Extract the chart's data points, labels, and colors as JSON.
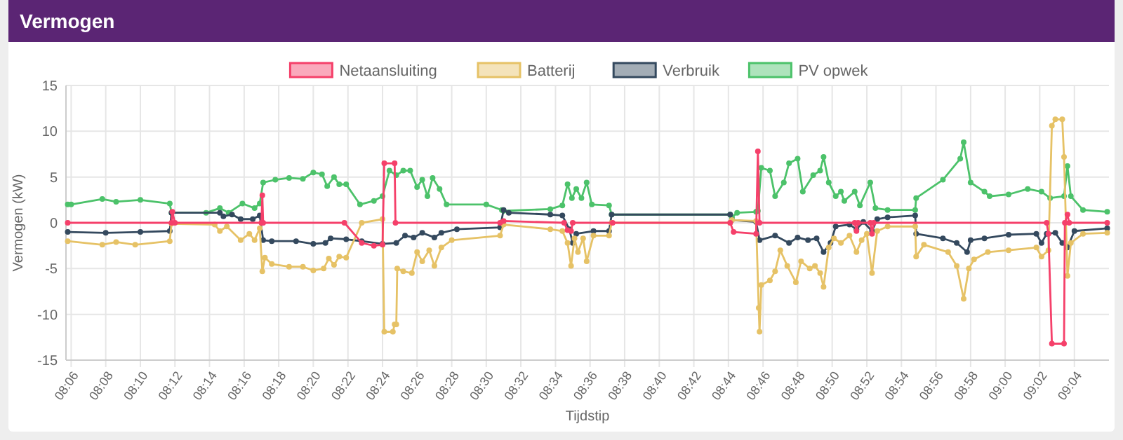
{
  "chart_data": {
    "type": "line",
    "title": "Vermogen",
    "xlabel": "Tijdstip",
    "ylabel": "Vermogen (kW)",
    "legend": "top",
    "grid": true,
    "marker": "circle",
    "line_style": "solid",
    "xlim": [
      8.095,
      9.1
    ],
    "ylim": [
      -15,
      15
    ],
    "yticks": [
      -15,
      -10,
      -5,
      0,
      5,
      10,
      15
    ],
    "xticks": [
      {
        "value": 8.1,
        "label": "08:06"
      },
      {
        "value": 8.1333,
        "label": "08:08"
      },
      {
        "value": 8.1667,
        "label": "08:10"
      },
      {
        "value": 8.2,
        "label": "08:12"
      },
      {
        "value": 8.2333,
        "label": "08:14"
      },
      {
        "value": 8.2667,
        "label": "08:16"
      },
      {
        "value": 8.3,
        "label": "08:18"
      },
      {
        "value": 8.3333,
        "label": "08:20"
      },
      {
        "value": 8.3667,
        "label": "08:22"
      },
      {
        "value": 8.4,
        "label": "08:24"
      },
      {
        "value": 8.4333,
        "label": "08:26"
      },
      {
        "value": 8.4667,
        "label": "08:28"
      },
      {
        "value": 8.5,
        "label": "08:30"
      },
      {
        "value": 8.5333,
        "label": "08:32"
      },
      {
        "value": 8.5667,
        "label": "08:34"
      },
      {
        "value": 8.6,
        "label": "08:36"
      },
      {
        "value": 8.6333,
        "label": "08:38"
      },
      {
        "value": 8.6667,
        "label": "08:40"
      },
      {
        "value": 8.7,
        "label": "08:42"
      },
      {
        "value": 8.7333,
        "label": "08:44"
      },
      {
        "value": 8.7667,
        "label": "08:46"
      },
      {
        "value": 8.8,
        "label": "08:48"
      },
      {
        "value": 8.8333,
        "label": "08:50"
      },
      {
        "value": 8.8667,
        "label": "08:52"
      },
      {
        "value": 8.9,
        "label": "08:54"
      },
      {
        "value": 8.9333,
        "label": "08:56"
      },
      {
        "value": 8.9667,
        "label": "08:58"
      },
      {
        "value": 9.0,
        "label": "09:00"
      },
      {
        "value": 9.0333,
        "label": "09:02"
      },
      {
        "value": 9.0667,
        "label": "09:04"
      }
    ],
    "series": [
      {
        "name": "Netaansluiting",
        "color": "#f5406a",
        "x": [
          8.0967,
          8.1967,
          8.1975,
          8.2,
          8.2833,
          8.2842,
          8.285,
          8.3633,
          8.38,
          8.3917,
          8.4,
          8.4017,
          8.4117,
          8.4125,
          8.5133,
          8.5167,
          8.575,
          8.5783,
          8.5817,
          8.5833,
          8.6217,
          8.735,
          8.7383,
          8.76,
          8.7617,
          8.7633,
          8.855,
          8.8567,
          8.8583,
          8.87,
          8.8717,
          8.8733,
          9.04,
          9.0417,
          9.045,
          9.0567,
          9.0575,
          9.06,
          9.0617,
          9.0983
        ],
        "values": [
          0,
          0,
          1.2,
          0,
          0,
          3.0,
          0,
          0,
          -2.2,
          -2.5,
          -2.4,
          6.5,
          6.5,
          0,
          0,
          0.2,
          0,
          -0.8,
          -0.9,
          0,
          0,
          0,
          -1.0,
          -1.2,
          7.8,
          0,
          0,
          -0.9,
          0,
          0,
          -1.2,
          0,
          0,
          -1.2,
          -13.2,
          -13.2,
          0,
          0.9,
          0,
          0
        ]
      },
      {
        "name": "Batterij",
        "color": "#e6c266",
        "x": [
          8.0967,
          8.13,
          8.1433,
          8.1617,
          8.195,
          8.1967,
          8.2383,
          8.2433,
          8.25,
          8.2633,
          8.2717,
          8.2767,
          8.2817,
          8.2842,
          8.2867,
          8.2933,
          8.31,
          8.3233,
          8.3333,
          8.3433,
          8.3483,
          8.3533,
          8.3583,
          8.365,
          8.38,
          8.4,
          8.4017,
          8.41,
          8.4117,
          8.4133,
          8.4142,
          8.42,
          8.4283,
          8.4333,
          8.4383,
          8.445,
          8.45,
          8.4567,
          8.4667,
          8.5133,
          8.5167,
          8.5617,
          8.5733,
          8.5783,
          8.5817,
          8.585,
          8.5883,
          8.5933,
          8.5967,
          8.6033,
          8.6183,
          8.6208,
          8.735,
          8.7367,
          8.76,
          8.7625,
          8.7633,
          8.765,
          8.7733,
          8.7783,
          8.7833,
          8.79,
          8.7983,
          8.8033,
          8.8117,
          8.8167,
          8.8217,
          8.825,
          8.83,
          8.835,
          8.8417,
          8.85,
          8.8567,
          8.8617,
          8.8667,
          8.8717,
          8.8767,
          8.8867,
          8.9133,
          8.9142,
          8.9217,
          8.945,
          8.9533,
          8.96,
          8.965,
          8.97,
          8.9833,
          9.0033,
          9.03,
          9.035,
          9.0417,
          9.045,
          9.0483,
          9.055,
          9.0567,
          9.06,
          9.0633,
          9.075,
          9.0983
        ],
        "values": [
          -2.0,
          -2.4,
          -2.1,
          -2.4,
          -2.0,
          -0.1,
          -0.2,
          -0.9,
          -0.4,
          -1.9,
          -1.2,
          -1.9,
          -0.6,
          -5.3,
          -3.8,
          -4.5,
          -4.8,
          -4.8,
          -5.2,
          -5.0,
          -3.9,
          -4.6,
          -3.7,
          -3.8,
          0,
          0.4,
          -11.9,
          -11.9,
          -11.1,
          -11.1,
          -5.0,
          -5.3,
          -5.5,
          -3.2,
          -4.2,
          -3.0,
          -4.7,
          -2.7,
          -1.9,
          -1.4,
          -0.2,
          -0.7,
          -0.9,
          -2.2,
          -4.7,
          -1.7,
          -3.2,
          -1.7,
          -4.2,
          -1.4,
          -1.4,
          0,
          0,
          0.3,
          0.2,
          -9.3,
          -11.9,
          -6.8,
          -6.3,
          -5.3,
          -3.0,
          -4.7,
          -6.5,
          -4.2,
          -5.0,
          -4.7,
          -5.5,
          -7.0,
          -2.7,
          -1.7,
          -2.2,
          -1.4,
          -3.2,
          -1.9,
          -1.2,
          -5.5,
          -0.9,
          -0.4,
          -0.4,
          -3.7,
          -2.4,
          -3.2,
          -4.7,
          -8.3,
          -5.0,
          -4.0,
          -3.2,
          -3.0,
          -2.7,
          -3.7,
          -3.0,
          10.6,
          11.3,
          11.3,
          7.2,
          -5.8,
          -2.2,
          -1.2,
          -1.1
        ]
      },
      {
        "name": "Verbruik",
        "color": "#34495e",
        "x": [
          8.0967,
          8.1333,
          8.1667,
          8.195,
          8.1967,
          8.2433,
          8.2467,
          8.255,
          8.2633,
          8.275,
          8.2817,
          8.285,
          8.2933,
          8.3167,
          8.3333,
          8.345,
          8.35,
          8.365,
          8.38,
          8.4,
          8.4133,
          8.4217,
          8.43,
          8.4383,
          8.45,
          8.4567,
          8.4717,
          8.5133,
          8.5167,
          8.5217,
          8.5617,
          8.5733,
          8.58,
          8.5833,
          8.5867,
          8.6033,
          8.6183,
          8.6208,
          8.735,
          8.7367,
          8.76,
          8.7633,
          8.7783,
          8.7917,
          8.8,
          8.81,
          8.8183,
          8.825,
          8.8317,
          8.8367,
          8.85,
          8.8567,
          8.8633,
          8.8717,
          8.8767,
          8.8867,
          8.9133,
          8.9142,
          8.94,
          8.9533,
          8.9633,
          8.9667,
          8.98,
          9.0033,
          9.03,
          9.035,
          9.04,
          9.0483,
          9.055,
          9.06,
          9.0667,
          9.0983
        ],
        "values": [
          -1.0,
          -1.1,
          -1.0,
          -0.9,
          1.1,
          1.1,
          0.7,
          0.9,
          0.4,
          0.4,
          0.8,
          -1.9,
          -2.0,
          -2.0,
          -2.3,
          -2.2,
          -1.7,
          -1.8,
          -2.0,
          -2.3,
          -2.2,
          -1.4,
          -1.6,
          -1.1,
          -1.6,
          -1.1,
          -0.7,
          -0.5,
          1.4,
          1.1,
          0.9,
          0.8,
          -0.7,
          -2.2,
          -1.2,
          -0.9,
          -0.9,
          0.9,
          0.9,
          0.3,
          0.1,
          -1.9,
          -1.4,
          -2.2,
          -1.6,
          -1.9,
          -1.7,
          -3.2,
          -2.2,
          -0.4,
          -0.2,
          -0.7,
          0.1,
          -0.9,
          0.4,
          0.6,
          0.8,
          -1.2,
          -1.7,
          -2.2,
          -3.2,
          -1.9,
          -1.7,
          -1.3,
          -1.2,
          -2.2,
          -1.2,
          -1.1,
          -2.2,
          -2.7,
          -0.9,
          -0.6
        ]
      },
      {
        "name": "PV opwek",
        "color": "#4cc26a",
        "x": [
          8.0967,
          8.1,
          8.13,
          8.1433,
          8.1667,
          8.195,
          8.1967,
          8.23,
          8.2433,
          8.2517,
          8.265,
          8.2767,
          8.2817,
          8.285,
          8.2967,
          8.31,
          8.3233,
          8.3333,
          8.3417,
          8.3467,
          8.3533,
          8.3583,
          8.365,
          8.3783,
          8.3917,
          8.4,
          8.4067,
          8.4133,
          8.42,
          8.4267,
          8.4333,
          8.4383,
          8.4433,
          8.4483,
          8.455,
          8.4617,
          8.5,
          8.515,
          8.5167,
          8.5617,
          8.5733,
          8.5783,
          8.5825,
          8.5867,
          8.5917,
          8.5967,
          8.6017,
          8.6183,
          8.6208,
          8.735,
          8.7367,
          8.7417,
          8.76,
          8.7617,
          8.765,
          8.7733,
          8.7783,
          8.7867,
          8.7917,
          8.8,
          8.805,
          8.815,
          8.8217,
          8.825,
          8.83,
          8.8367,
          8.8417,
          8.845,
          8.855,
          8.86,
          8.87,
          8.875,
          8.8867,
          8.9133,
          8.9142,
          8.94,
          8.9567,
          8.96,
          8.9667,
          8.98,
          8.985,
          9.0033,
          9.0217,
          9.035,
          9.0433,
          9.0567,
          9.06,
          9.0633,
          9.075,
          9.0983
        ],
        "values": [
          2.0,
          2.0,
          2.6,
          2.3,
          2.5,
          2.1,
          1.1,
          1.1,
          1.6,
          1.1,
          2.1,
          1.6,
          2.1,
          4.4,
          4.7,
          4.9,
          4.8,
          5.5,
          5.3,
          4.0,
          5.0,
          4.2,
          4.2,
          2.0,
          2.4,
          2.9,
          5.7,
          5.2,
          5.7,
          5.7,
          3.9,
          4.7,
          2.9,
          4.9,
          3.7,
          2.0,
          2.0,
          1.4,
          1.3,
          1.5,
          1.9,
          4.2,
          2.7,
          3.7,
          2.7,
          4.4,
          2.0,
          1.9,
          0.9,
          0.9,
          0.6,
          1.1,
          1.2,
          1.3,
          6.0,
          5.7,
          2.9,
          4.4,
          6.5,
          7.0,
          3.4,
          5.2,
          5.7,
          7.2,
          4.4,
          2.9,
          3.4,
          2.4,
          3.4,
          1.9,
          4.4,
          1.6,
          1.4,
          1.4,
          2.7,
          4.7,
          7.0,
          8.8,
          4.4,
          3.4,
          2.9,
          3.1,
          3.7,
          3.4,
          2.7,
          2.9,
          6.2,
          2.9,
          1.4,
          1.2
        ]
      }
    ]
  }
}
